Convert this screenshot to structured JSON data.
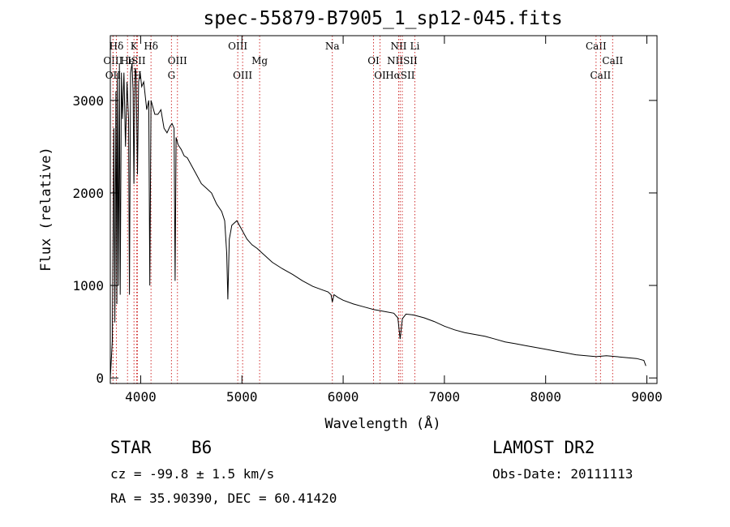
{
  "chart_data": {
    "type": "line",
    "title": "spec-55879-B7905_1_sp12-045.fits",
    "xlabel": "Wavelength (Å)",
    "ylabel": "Flux (relative)",
    "xlim": [
      3700,
      9100
    ],
    "ylim": [
      -60,
      3700
    ],
    "x_ticks": [
      4000,
      5000,
      6000,
      7000,
      8000,
      9000
    ],
    "y_ticks": [
      0,
      1000,
      2000,
      3000
    ],
    "grid": false,
    "series": [
      {
        "x": [
          3700,
          3720,
          3735,
          3745,
          3755,
          3765,
          3770,
          3780,
          3790,
          3798,
          3810,
          3820,
          3835,
          3850,
          3865,
          3880,
          3889,
          3900,
          3915,
          3925,
          3933,
          3945,
          3955,
          3968,
          3980,
          3995,
          4010,
          4030,
          4060,
          4080,
          4090,
          4102,
          4115,
          4140,
          4170,
          4200,
          4230,
          4260,
          4290,
          4310,
          4330,
          4340,
          4350,
          4370,
          4400,
          4430,
          4460,
          4500,
          4550,
          4600,
          4650,
          4700,
          4750,
          4800,
          4830,
          4850,
          4861,
          4875,
          4900,
          4950,
          5000,
          5050,
          5100,
          5150,
          5200,
          5300,
          5400,
          5500,
          5600,
          5700,
          5800,
          5850,
          5880,
          5893,
          5910,
          5950,
          6000,
          6100,
          6200,
          6300,
          6400,
          6500,
          6540,
          6563,
          6585,
          6620,
          6700,
          6800,
          6900,
          7000,
          7100,
          7200,
          7300,
          7400,
          7500,
          7600,
          7700,
          7800,
          7900,
          8000,
          8100,
          8200,
          8300,
          8400,
          8500,
          8600,
          8700,
          8800,
          8900,
          8970,
          8990
        ],
        "y": [
          0,
          400,
          2700,
          600,
          3100,
          800,
          3300,
          1000,
          3400,
          900,
          3300,
          2800,
          3300,
          2500,
          3200,
          2800,
          900,
          3300,
          3400,
          3100,
          2100,
          3350,
          3300,
          2200,
          3200,
          3300,
          3150,
          3200,
          2900,
          3000,
          1000,
          3000,
          2950,
          2850,
          2850,
          2900,
          2700,
          2650,
          2720,
          2750,
          2700,
          1050,
          2600,
          2520,
          2470,
          2400,
          2380,
          2300,
          2200,
          2100,
          2050,
          2000,
          1880,
          1800,
          1700,
          1350,
          850,
          1500,
          1650,
          1700,
          1600,
          1500,
          1440,
          1400,
          1350,
          1250,
          1180,
          1120,
          1050,
          990,
          950,
          930,
          900,
          820,
          900,
          870,
          840,
          800,
          770,
          740,
          720,
          700,
          650,
          420,
          640,
          690,
          680,
          650,
          610,
          560,
          520,
          490,
          470,
          450,
          420,
          390,
          370,
          350,
          330,
          310,
          290,
          270,
          250,
          240,
          230,
          240,
          230,
          220,
          210,
          190,
          130
        ]
      }
    ],
    "line_markers": [
      {
        "label": "Hδ",
        "x": 3760,
        "row": 1
      },
      {
        "label": "K",
        "x": 3934,
        "row": 1
      },
      {
        "label": "Hδ",
        "x": 4102,
        "row": 1
      },
      {
        "label": "OIII",
        "x": 3727,
        "row": 2
      },
      {
        "label": "He",
        "x": 3870,
        "row": 2
      },
      {
        "label": "ISII",
        "x": 3960,
        "row": 2
      },
      {
        "label": "OIII",
        "x": 4363,
        "row": 2
      },
      {
        "label": "OII",
        "x": 3727,
        "row": 3
      },
      {
        "label": "H",
        "x": 3968,
        "row": 3
      },
      {
        "label": "G",
        "x": 4304,
        "row": 3
      },
      {
        "label": "OIII",
        "x": 4959,
        "row": 1
      },
      {
        "label": "Mg",
        "x": 5175,
        "row": 2
      },
      {
        "label": "OIII",
        "x": 5007,
        "row": 3
      },
      {
        "label": "Na",
        "x": 5893,
        "row": 1
      },
      {
        "label": "OI",
        "x": 6300,
        "row": 2
      },
      {
        "label": "OI",
        "x": 6364,
        "row": 3
      },
      {
        "label": "NII",
        "x": 6548,
        "row": 1
      },
      {
        "label": "Li",
        "x": 6708,
        "row": 1
      },
      {
        "label": "NIISII",
        "x": 6584,
        "row": 2
      },
      {
        "label": "HαSII",
        "x": 6563,
        "row": 3
      },
      {
        "label": "CaII",
        "x": 8498,
        "row": 1
      },
      {
        "label": "CaII",
        "x": 8662,
        "row": 2
      },
      {
        "label": "CaII",
        "x": 8542,
        "row": 3
      }
    ]
  },
  "info": {
    "object_class": "STAR",
    "subclass": "B6",
    "survey": "LAMOST DR2",
    "velocity": "cz = -99.8 ± 1.5 km/s",
    "obs_date": "Obs-Date: 20111113",
    "coords": "RA =  35.90390, DEC =  60.41420"
  }
}
